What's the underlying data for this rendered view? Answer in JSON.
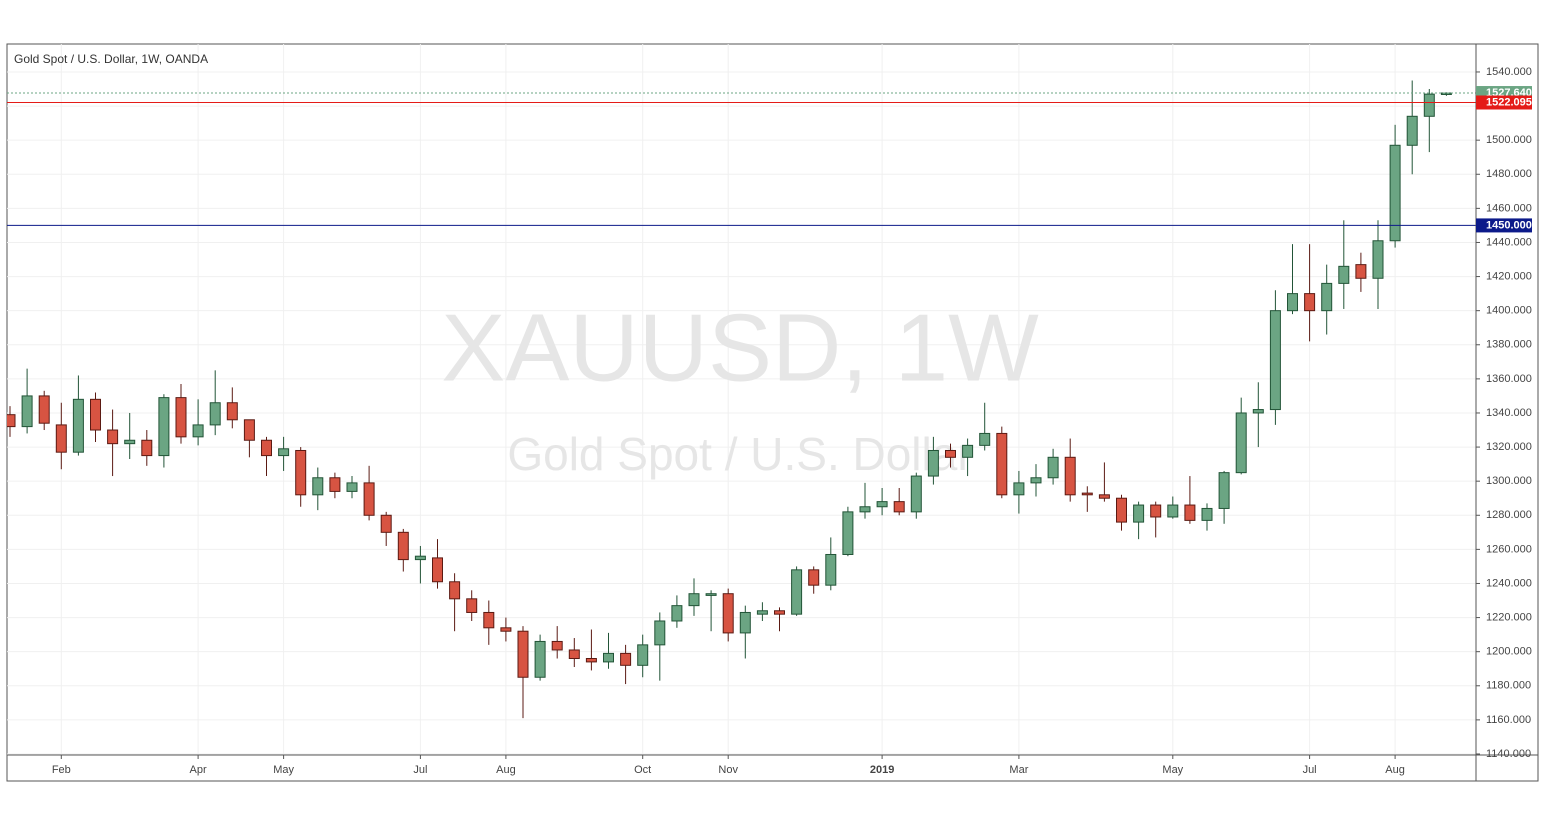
{
  "chart_data": {
    "type": "candlestick",
    "title": "Gold Spot / U.S. Dollar, 1W, OANDA",
    "watermark": "XAUUSD, 1W",
    "watermark_subtitle": "Gold Spot / U.S. Dollar",
    "categories": [
      null,
      null,
      null,
      "Feb",
      null,
      null,
      null,
      null,
      null,
      null,
      null,
      "Apr",
      null,
      null,
      null,
      null,
      "May",
      null,
      null,
      null,
      null,
      null,
      null,
      null,
      "Jul",
      null,
      null,
      null,
      null,
      "Aug",
      null,
      null,
      null,
      null,
      null,
      null,
      null,
      "Oct",
      null,
      null,
      null,
      null,
      "Nov",
      null,
      null,
      null,
      null,
      null,
      null,
      null,
      null,
      "2019",
      null,
      null,
      null,
      null,
      null,
      null,
      null,
      "Mar",
      null,
      null,
      null,
      null,
      null,
      null,
      null,
      null,
      "May",
      null,
      null,
      null,
      null,
      null,
      null,
      null,
      "Jul",
      null,
      null,
      null,
      null,
      "Aug",
      null,
      null,
      null
    ],
    "open": [
      1339,
      1332,
      1350,
      1333,
      1317,
      1348,
      1330,
      1322,
      1324,
      1315,
      1349,
      1326,
      1333,
      1346,
      1336,
      1324,
      1315,
      1318,
      1292,
      1302,
      1294,
      1299,
      1280,
      1270,
      1254,
      1255,
      1241,
      1231,
      1223,
      1214,
      1212,
      1185,
      1206,
      1201,
      1196,
      1194,
      1199,
      1192,
      1204,
      1218,
      1227,
      1233,
      1234,
      1211,
      1222,
      1224,
      1222,
      1248,
      1239,
      1257,
      1282,
      1285,
      1288,
      1282,
      1303,
      1318,
      1314,
      1321,
      1328,
      1292,
      1299,
      1302,
      1314,
      1293,
      1292,
      1290,
      1276,
      1286,
      1279,
      1286,
      1277,
      1284,
      1305,
      1340,
      1342,
      1400,
      1410,
      1400,
      1416,
      1427,
      1419,
      1441,
      1497,
      1514,
      1526.8
    ],
    "high": [
      1344,
      1366,
      1353,
      1346,
      1362,
      1352,
      1342,
      1340,
      1330,
      1351,
      1357,
      1348,
      1365,
      1355,
      1336,
      1326,
      1326,
      1320,
      1308,
      1305,
      1303,
      1309,
      1282,
      1272,
      1262,
      1266,
      1246,
      1236,
      1230,
      1220,
      1215,
      1210,
      1215,
      1208,
      1213,
      1211,
      1204,
      1210,
      1223,
      1233,
      1243,
      1236,
      1237,
      1227,
      1229,
      1226,
      1250,
      1250,
      1267,
      1285,
      1299,
      1296,
      1296,
      1305,
      1326,
      1322,
      1325,
      1346,
      1332,
      1306,
      1310,
      1319,
      1325,
      1297,
      1311,
      1292,
      1288,
      1288,
      1291,
      1303,
      1287,
      1306,
      1349,
      1358,
      1412,
      1439,
      1439,
      1427,
      1453,
      1434,
      1453,
      1509,
      1535,
      1530,
      1528
    ],
    "low": [
      1326,
      1328,
      1330,
      1307,
      1315,
      1323,
      1303,
      1313,
      1309,
      1308,
      1322,
      1321,
      1327,
      1331,
      1314,
      1303,
      1306,
      1285,
      1283,
      1290,
      1290,
      1277,
      1262,
      1247,
      1240,
      1237,
      1212,
      1218,
      1204,
      1206,
      1161,
      1183,
      1196,
      1191,
      1189,
      1190,
      1181,
      1185,
      1183,
      1214,
      1221,
      1212,
      1206,
      1196,
      1218,
      1212,
      1221,
      1234,
      1236,
      1256,
      1278,
      1280,
      1280,
      1278,
      1298,
      1308,
      1303,
      1318,
      1290,
      1281,
      1291,
      1298,
      1288,
      1282,
      1288,
      1271,
      1266,
      1267,
      1278,
      1275,
      1271,
      1275,
      1304,
      1320,
      1333,
      1398,
      1382,
      1386,
      1401,
      1411,
      1401,
      1437,
      1480,
      1493,
      1526
    ],
    "close": [
      1332,
      1350,
      1334,
      1317,
      1348,
      1330,
      1322,
      1324,
      1315,
      1349,
      1326,
      1333,
      1346,
      1336,
      1324,
      1315,
      1319,
      1292,
      1302,
      1294,
      1299,
      1280,
      1270,
      1254,
      1256,
      1241,
      1231,
      1223,
      1214,
      1212,
      1185,
      1206,
      1201,
      1196,
      1194,
      1199,
      1192,
      1204,
      1218,
      1227,
      1234,
      1234,
      1211,
      1223,
      1224,
      1222,
      1248,
      1239,
      1257,
      1282,
      1285,
      1288,
      1282,
      1303,
      1318,
      1314,
      1321,
      1328,
      1292,
      1299,
      1302,
      1314,
      1292,
      1292,
      1290,
      1276,
      1286,
      1279,
      1286,
      1277,
      1284,
      1305,
      1340,
      1342,
      1400,
      1410,
      1400,
      1416,
      1426,
      1419,
      1441,
      1497,
      1514,
      1527,
      1527.64
    ],
    "up_color": "#6ba583",
    "down_color": "#d75442",
    "ylim": [
      1139.4,
      1556.4
    ],
    "yticks": [
      {
        "value": 1140,
        "label": "1140.000"
      },
      {
        "value": 1160,
        "label": "1160.000"
      },
      {
        "value": 1180,
        "label": "1180.000"
      },
      {
        "value": 1200,
        "label": "1200.000"
      },
      {
        "value": 1220,
        "label": "1220.000"
      },
      {
        "value": 1240,
        "label": "1240.000"
      },
      {
        "value": 1260,
        "label": "1260.000"
      },
      {
        "value": 1280,
        "label": "1280.000"
      },
      {
        "value": 1300,
        "label": "1300.000"
      },
      {
        "value": 1320,
        "label": "1320.000"
      },
      {
        "value": 1340,
        "label": "1340.000"
      },
      {
        "value": 1360,
        "label": "1360.000"
      },
      {
        "value": 1380,
        "label": "1380.000"
      },
      {
        "value": 1400,
        "label": "1400.000"
      },
      {
        "value": 1420,
        "label": "1420.000"
      },
      {
        "value": 1440,
        "label": "1440.000"
      },
      {
        "value": 1460,
        "label": "1460.000"
      },
      {
        "value": 1480,
        "label": "1480.000"
      },
      {
        "value": 1500,
        "label": "1500.000"
      },
      {
        "value": 1520,
        "label": "1520.000"
      },
      {
        "value": 1540,
        "label": "1540.000"
      }
    ],
    "grid": true,
    "lines": [
      {
        "value": 1527.64,
        "label": "1527.640",
        "color": "#6ba583",
        "style": "dotted"
      },
      {
        "value": 1522.095,
        "label": "1522.095",
        "color": "#e41b17",
        "style": "solid"
      },
      {
        "value": 1450,
        "label": "1450.000",
        "color": "#0c1a8a",
        "style": "solid"
      }
    ]
  }
}
